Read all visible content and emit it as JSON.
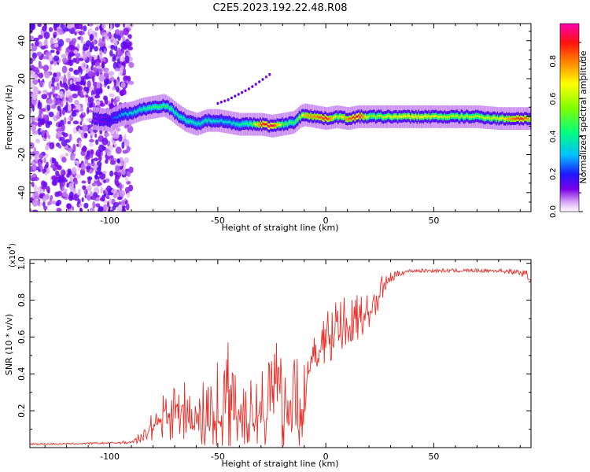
{
  "figure": {
    "title": "C2E5.2023.192.22.48.R08"
  },
  "chart_data": [
    {
      "type": "heatmap",
      "xlabel": "Height of straight line (km)",
      "ylabel": "Frequency (Hz)",
      "xlim": [
        -137,
        95
      ],
      "ylim": [
        -50,
        49
      ],
      "xticks": [
        -100,
        -50,
        0,
        50
      ],
      "yticks": [
        -40,
        -20,
        0,
        20,
        40
      ],
      "xtick_labels": [
        "-100",
        "-50",
        "0",
        "50"
      ],
      "ytick_labels": [
        "-40",
        "-20",
        "0",
        "20",
        "40"
      ],
      "colorbar": {
        "label": "Normalized spectral amplitude",
        "range": [
          0,
          1
        ],
        "ticks": [
          0.0,
          0.2,
          0.4,
          0.6,
          0.8
        ],
        "tick_labels": [
          "0.0",
          "0.2",
          "0.4",
          "0.6",
          "0.8"
        ]
      },
      "ridge": {
        "x": [
          -107,
          -100,
          -95,
          -90,
          -85,
          -80,
          -75,
          -72,
          -70,
          -65,
          -60,
          -55,
          -50,
          -45,
          -40,
          -35,
          -30,
          -25,
          -20,
          -15,
          -12,
          -10,
          -5,
          0,
          5,
          10,
          15,
          20,
          30,
          40,
          50,
          60,
          70,
          80,
          90,
          95
        ],
        "y": [
          -1,
          -2,
          1,
          2,
          4,
          5,
          6,
          4,
          2,
          -2,
          -4,
          -2,
          -2,
          -3,
          -4,
          -4,
          -4,
          -5,
          -4,
          -3,
          0,
          1,
          0,
          -1,
          0,
          -1,
          0,
          0,
          0,
          0,
          0,
          0,
          0,
          -1,
          -1,
          -1
        ],
        "peak_amplitude": [
          0.15,
          0.2,
          0.3,
          0.35,
          0.4,
          0.45,
          0.45,
          0.45,
          0.4,
          0.4,
          0.38,
          0.38,
          0.35,
          0.35,
          0.4,
          0.45,
          0.9,
          0.95,
          0.5,
          0.45,
          0.6,
          0.75,
          0.8,
          0.9,
          0.6,
          0.8,
          0.95,
          0.55,
          0.65,
          0.7,
          0.65,
          0.6,
          0.6,
          0.65,
          0.9,
          0.7
        ]
      },
      "side_track": {
        "x": [
          -50,
          -45,
          -40,
          -35,
          -30,
          -25
        ],
        "y": [
          7,
          9,
          12,
          15,
          19,
          23
        ]
      }
    },
    {
      "type": "line",
      "xlabel": "Height of straight line (km)",
      "ylabel": "SNR (10 * v/v)",
      "y_multiplier": "(x10",
      "y_multiplier_exp": "4",
      "y_multiplier_close": ")",
      "xlim": [
        -137,
        95
      ],
      "ylim": [
        0,
        1.02
      ],
      "xticks": [
        -100,
        -50,
        0,
        50
      ],
      "yticks": [
        0.2,
        0.4,
        0.6,
        0.8,
        1.0
      ],
      "xtick_labels": [
        "-100",
        "-50",
        "0",
        "50"
      ],
      "ytick_labels": [
        "0.2",
        "0.4",
        "0.6",
        "0.8",
        "1.0"
      ],
      "color": "#e8302a",
      "series": [
        {
          "x": [
            -137,
            -120,
            -100,
            -90,
            -85,
            -80,
            -75,
            -70,
            -65,
            -60,
            -55,
            -50,
            -45,
            -40,
            -35,
            -30,
            -25,
            -20,
            -15,
            -10,
            -8,
            -5,
            0,
            5,
            10,
            15,
            20,
            25,
            30,
            35,
            40,
            50,
            60,
            70,
            80,
            90,
            95
          ],
          "y": [
            0.02,
            0.02,
            0.025,
            0.03,
            0.06,
            0.15,
            0.22,
            0.25,
            0.2,
            0.18,
            0.22,
            0.25,
            0.32,
            0.28,
            0.25,
            0.28,
            0.35,
            0.32,
            0.25,
            0.3,
            0.45,
            0.52,
            0.62,
            0.66,
            0.7,
            0.72,
            0.78,
            0.85,
            0.92,
            0.95,
            0.96,
            0.96,
            0.96,
            0.96,
            0.96,
            0.95,
            0.93
          ],
          "spread": [
            0.005,
            0.005,
            0.005,
            0.01,
            0.03,
            0.1,
            0.15,
            0.2,
            0.15,
            0.15,
            0.2,
            0.25,
            0.3,
            0.25,
            0.2,
            0.25,
            0.3,
            0.3,
            0.25,
            0.3,
            0.1,
            0.1,
            0.15,
            0.15,
            0.12,
            0.12,
            0.12,
            0.08,
            0.03,
            0.015,
            0.01,
            0.01,
            0.01,
            0.01,
            0.01,
            0.015,
            0.03
          ]
        }
      ]
    }
  ]
}
